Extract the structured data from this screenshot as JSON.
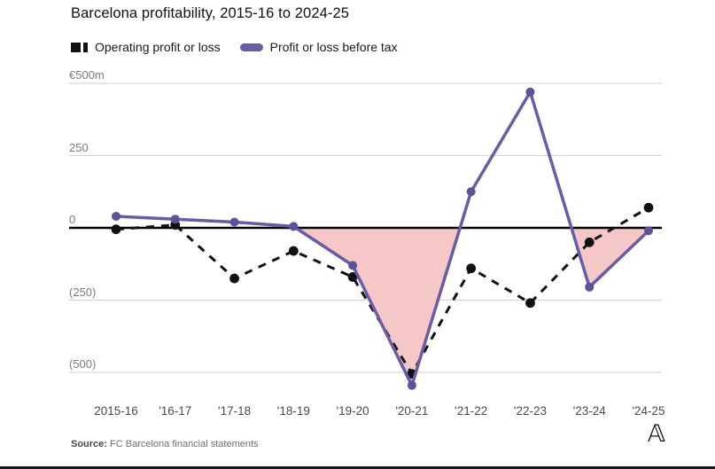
{
  "title": "Barcelona profitability, 2015-16 to 2024-25",
  "legend": {
    "operating": {
      "label": "Operating profit or loss",
      "color": "#111111"
    },
    "pretax": {
      "label": "Profit or loss before tax",
      "color": "#675ca7"
    }
  },
  "source": {
    "prefix": "Source:",
    "text": " FC Barcelona financial statements"
  },
  "logo_glyph": "𝔸",
  "colors": {
    "pretax_line": "#675ca7",
    "operating_line": "#111111",
    "negative_fill": "#f5c7c7",
    "gridline": "#d2d2d2",
    "zero_line": "#000000"
  },
  "chart_data": {
    "type": "line",
    "title": "Barcelona profitability, 2015-16 to 2024-25",
    "unit": "€ million",
    "categories": [
      "2015-16",
      "'16-17",
      "'17-18",
      "'18-19",
      "'19-20",
      "'20-21",
      "'21-22",
      "'22-23",
      "'23-24",
      "'24-25"
    ],
    "series": [
      {
        "name": "Operating profit or loss",
        "style": "dashed",
        "color": "#111111",
        "values": [
          -5,
          10,
          -175,
          -80,
          -170,
          -505,
          -140,
          -260,
          -50,
          70
        ]
      },
      {
        "name": "Profit or loss before tax",
        "style": "solid",
        "color": "#675ca7",
        "fill_below_zero": "#f5c7c7",
        "values": [
          40,
          30,
          20,
          5,
          -130,
          -545,
          125,
          470,
          -205,
          -10
        ]
      }
    ],
    "ylabel_ticks": [
      "€500m",
      "250",
      "0",
      "(250)",
      "(500)"
    ],
    "ytick_values": [
      500,
      250,
      0,
      -250,
      -500
    ],
    "ylim": [
      -560,
      500
    ],
    "grid": true,
    "legend_position": "top"
  }
}
